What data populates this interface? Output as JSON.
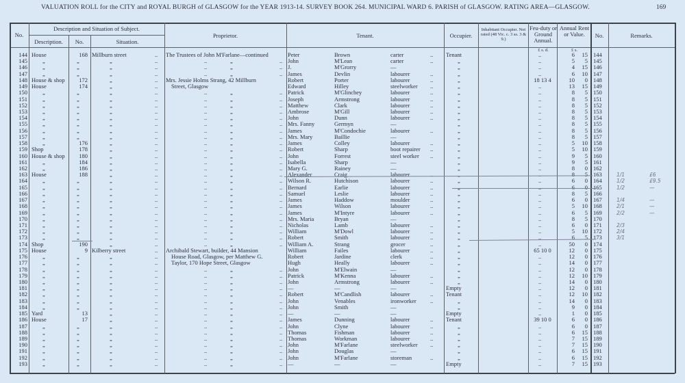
{
  "header": {
    "title": "VALUATION ROLL for the CITY and ROYAL BURGH of GLASGOW for the YEAR 1913-14.   SURVEY BOOK 264.   MUNICIPAL WARD 6.   PARISH of GLASGOW.   RATING AREA—GLASGOW.",
    "page_number": "169"
  },
  "columns": {
    "no": "No.",
    "desc_group": "Description and Situation of Subject.",
    "description": "Description.",
    "number": "No.",
    "situation": "Situation.",
    "proprietor": "Proprietor.",
    "tenant": "Tenant.",
    "occupier": "Occupier.",
    "inhabitant": "Inhabitant Occupier. Not rated (48 Vic. c. 3 ss. 3 & 9.)",
    "feu": "Feu-duty or Ground Annual.",
    "feu_units": "£  s.  d.",
    "rent": "Annual Rent or Value.",
    "rent_units": "£  s.",
    "no2": "No.",
    "remarks": "Remarks."
  },
  "leader": "..",
  "ditto": "„",
  "rows": [
    [
      "144",
      "House",
      "168",
      "Millburn street",
      "The Trustees of John M'Farlane—continued",
      "Peter",
      "Brown",
      "carter",
      "Tenant",
      "",
      "6",
      "15",
      "",
      ""
    ],
    [
      "145",
      "„",
      "„",
      "„",
      "„",
      "John",
      "M'Lean",
      "carter",
      "„",
      "",
      "5",
      "5",
      "",
      ""
    ],
    [
      "146",
      "„",
      "„",
      "„",
      "„",
      "J.",
      "M'Grorry",
      "—",
      "„",
      "",
      "4",
      "15",
      "",
      ""
    ],
    [
      "147",
      "„",
      "„",
      "„",
      "„",
      "James",
      "Devlin",
      "labourer",
      "„",
      "",
      "6",
      "10",
      "",
      ""
    ],
    [
      "148",
      "House & shop",
      "172",
      "„",
      "Mrs. Jessie Holms Strang, 42 Millburn",
      "Robert",
      "Porter",
      "labourer",
      "„",
      "18 13 4",
      "10",
      "0",
      "",
      ""
    ],
    [
      "149",
      "House",
      "174",
      "„",
      "Street, Glasgow",
      "Edward",
      "Hilley",
      "steelworker",
      "„",
      "",
      "13",
      "15",
      "",
      ""
    ],
    [
      "150",
      "„",
      "„",
      "„",
      "„",
      "Patrick",
      "M'Glinchey",
      "labourer",
      "„",
      "",
      "8",
      "5",
      "",
      ""
    ],
    [
      "151",
      "„",
      "„",
      "„",
      "„",
      "Joseph",
      "Armstrong",
      "labourer",
      "„",
      "",
      "8",
      "5",
      "",
      ""
    ],
    [
      "152",
      "„",
      "„",
      "„",
      "„",
      "Matthew",
      "Clark",
      "labourer",
      "„",
      "",
      "8",
      "5",
      "",
      ""
    ],
    [
      "153",
      "„",
      "„",
      "„",
      "„",
      "Ambrose",
      "M'Gill",
      "labourer",
      "„",
      "",
      "8",
      "5",
      "",
      ""
    ],
    [
      "154",
      "„",
      "„",
      "„",
      "„",
      "John",
      "Dunn",
      "labourer",
      "„",
      "",
      "8",
      "5",
      "",
      ""
    ],
    [
      "155",
      "„",
      "„",
      "„",
      "„",
      "Mrs. Fanny",
      "Germyn",
      "—",
      "„",
      "",
      "8",
      "5",
      "",
      ""
    ],
    [
      "156",
      "„",
      "„",
      "„",
      "„",
      "James",
      "M'Condochie",
      "labourer",
      "„",
      "",
      "8",
      "5",
      "",
      ""
    ],
    [
      "157",
      "„",
      "„",
      "„",
      "„",
      "Mrs. Mary",
      "Baillie",
      "—",
      "„",
      "",
      "8",
      "5",
      "",
      ""
    ],
    [
      "158",
      "„",
      "176",
      "„",
      "„",
      "James",
      "Colley",
      "labourer",
      "„",
      "",
      "5",
      "10",
      "",
      ""
    ],
    [
      "159",
      "Shop",
      "178",
      "„",
      "„",
      "Robert",
      "Sharp",
      "boot repairer",
      "„",
      "",
      "5",
      "10",
      "",
      ""
    ],
    [
      "160",
      "House & shop",
      "180",
      "„",
      "„",
      "John",
      "Forrest",
      "steel worker",
      "„",
      "",
      "9",
      "5",
      "",
      ""
    ],
    [
      "161",
      "„",
      "184",
      "„",
      "„",
      "Isabella",
      "Sharp",
      "—",
      "„",
      "",
      "9",
      "5",
      "",
      ""
    ],
    [
      "162",
      "„",
      "186",
      "„",
      "„",
      "Mary G.",
      "Rainey",
      "—",
      "„",
      "",
      "8",
      "0",
      "",
      ""
    ],
    [
      "163",
      "House",
      "188",
      "„",
      "„",
      "Alexander",
      "Craig",
      "labourer",
      "„",
      "",
      "8",
      "5",
      "1/1",
      "£6"
    ],
    [
      "164",
      "„",
      "„",
      "„",
      "„",
      "Wilson R.",
      "Hutchison",
      "labourer",
      "„",
      "",
      "6",
      "0",
      "1/2",
      "£9.5"
    ],
    [
      "165",
      "„",
      "„",
      "„",
      "„",
      "Bernard",
      "Earlie",
      "labourer",
      "„",
      "",
      "6",
      "0",
      "1/2",
      "—"
    ],
    [
      "166",
      "„",
      "„",
      "„",
      "„",
      "Samuel",
      "Leslie",
      "labourer",
      "„",
      "",
      "8",
      "5",
      "",
      ""
    ],
    [
      "167",
      "„",
      "„",
      "„",
      "„",
      "James",
      "Haddow",
      "moulder",
      "„",
      "",
      "6",
      "0",
      "1/4",
      "—"
    ],
    [
      "168",
      "„",
      "„",
      "„",
      "„",
      "James",
      "Wilson",
      "labourer",
      "„",
      "",
      "5",
      "10",
      "2/1",
      "—"
    ],
    [
      "169",
      "„",
      "„",
      "„",
      "„",
      "James",
      "M'Intyre",
      "labourer",
      "„",
      "",
      "6",
      "5",
      "2/2",
      "—"
    ],
    [
      "170",
      "„",
      "„",
      "„",
      "„",
      "Mrs. Maria",
      "Bryan",
      "—",
      "„",
      "",
      "8",
      "5",
      "",
      ""
    ],
    [
      "171",
      "„",
      "„",
      "„",
      "„",
      "Nicholas",
      "Lamb",
      "labourer",
      "„",
      "",
      "6",
      "0",
      "2/3",
      ""
    ],
    [
      "172",
      "„",
      "„",
      "„",
      "„",
      "William",
      "M'Dowl",
      "labourer",
      "„",
      "",
      "5",
      "10",
      "2/4",
      ""
    ],
    [
      "173",
      "„",
      "„",
      "„",
      "„",
      "Robert",
      "Smith",
      "labourer",
      "„",
      "",
      "6",
      "5",
      "3/1",
      ""
    ],
    [
      "174",
      "Shop",
      "190",
      "„",
      "„",
      "William A.",
      "Strang",
      "grocer",
      "„",
      "",
      "50",
      "0",
      "",
      ""
    ],
    [
      "175",
      "House",
      "9",
      "Kilberry street",
      "Archibald Stewart, builder, 44 Mansion",
      "William",
      "Failes",
      "labourer",
      "„",
      "65 10 0",
      "12",
      "0",
      "",
      ""
    ],
    [
      "176",
      "„",
      "„",
      "„",
      "House Road, Glasgow, per Matthew G.",
      "Robert",
      "Jardine",
      "clerk",
      "„",
      "",
      "12",
      "0",
      "",
      ""
    ],
    [
      "177",
      "„",
      "„",
      "„",
      "Taylor, 170 Hope Street, Glasgow",
      "Hugh",
      "Heally",
      "labourer",
      "„",
      "",
      "14",
      "0",
      "",
      ""
    ],
    [
      "178",
      "„",
      "„",
      "„",
      "„",
      "John",
      "M'Elwain",
      "—",
      "„",
      "",
      "12",
      "0",
      "",
      ""
    ],
    [
      "179",
      "„",
      "„",
      "„",
      "„",
      "Patrick",
      "M'Kenna",
      "labourer",
      "„",
      "",
      "12",
      "10",
      "",
      ""
    ],
    [
      "180",
      "„",
      "„",
      "„",
      "„",
      "John",
      "Armstrong",
      "labourer",
      "„",
      "",
      "14",
      "0",
      "",
      ""
    ],
    [
      "181",
      "„",
      "„",
      "„",
      "„",
      "—",
      "—",
      "—",
      "Empty",
      "",
      "12",
      "0",
      "",
      ""
    ],
    [
      "182",
      "„",
      "„",
      "„",
      "„",
      "Robert",
      "M'Candlish",
      "labourer",
      "Tenant",
      "",
      "12",
      "10",
      "",
      ""
    ],
    [
      "183",
      "„",
      "„",
      "„",
      "„",
      "John",
      "Venables",
      "ironworker",
      "„",
      "",
      "14",
      "0",
      "",
      ""
    ],
    [
      "184",
      "„",
      "„",
      "„",
      "„",
      "John",
      "Smith",
      "—",
      "„",
      "",
      "9",
      "0",
      "",
      ""
    ],
    [
      "185",
      "Yard",
      "13",
      "„",
      "„",
      "—",
      "—",
      "—",
      "Empty",
      "",
      "1",
      "0",
      "",
      ""
    ],
    [
      "186",
      "House",
      "17",
      "„",
      "„",
      "James",
      "Dunning",
      "labourer",
      "Tenant",
      "39 10 0",
      "6",
      "0",
      "",
      ""
    ],
    [
      "187",
      "„",
      "„",
      "„",
      "„",
      "John",
      "Clyne",
      "labourer",
      "„",
      "",
      "6",
      "0",
      "",
      ""
    ],
    [
      "188",
      "„",
      "„",
      "„",
      "„",
      "Thomas",
      "Fishman",
      "labourer",
      "„",
      "",
      "6",
      "15",
      "",
      ""
    ],
    [
      "189",
      "„",
      "„",
      "„",
      "„",
      "Thomas",
      "Workman",
      "labourer",
      "„",
      "",
      "7",
      "15",
      "",
      ""
    ],
    [
      "190",
      "„",
      "„",
      "„",
      "„",
      "John",
      "M'Farlane",
      "steelworker",
      "„",
      "",
      "7",
      "15",
      "",
      ""
    ],
    [
      "191",
      "„",
      "„",
      "„",
      "„",
      "John",
      "Douglas",
      "—",
      "„",
      "",
      "6",
      "15",
      "",
      ""
    ],
    [
      "192",
      "„",
      "„",
      "„",
      "„",
      "John",
      "M'Farlane",
      "storeman",
      "„",
      "",
      "6",
      "15",
      "",
      ""
    ],
    [
      "193",
      "„",
      "„",
      "„",
      "„",
      "—",
      "—",
      "—",
      "Empty",
      "",
      "7",
      "15",
      "",
      ""
    ]
  ]
}
